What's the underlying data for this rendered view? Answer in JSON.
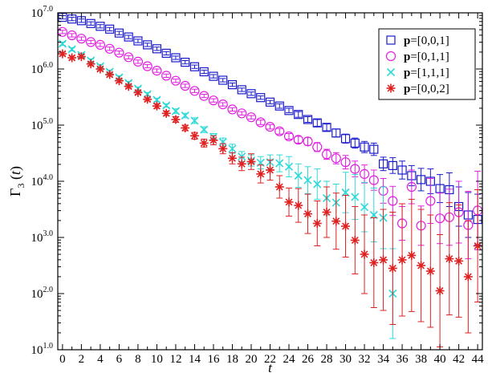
{
  "chart_data": {
    "type": "scatter",
    "title": "",
    "xlabel": "t",
    "ylabel": "Γ",
    "ylabel_sub": "3",
    "ylabel_suffix": " (t)",
    "xlim": [
      -0.5,
      44.5
    ],
    "ylim_log10": [
      1.0,
      7.0
    ],
    "log_scale_y": true,
    "grid": false,
    "legend_position": "top-right",
    "x_ticks": [
      0,
      2,
      4,
      6,
      8,
      10,
      12,
      14,
      16,
      18,
      20,
      22,
      24,
      26,
      28,
      30,
      32,
      34,
      36,
      38,
      40,
      42,
      44
    ],
    "y_ticks": [
      {
        "exp": 1.0,
        "base": "10",
        "power": "1.0"
      },
      {
        "exp": 2.0,
        "base": "10",
        "power": "2.0"
      },
      {
        "exp": 3.0,
        "base": "10",
        "power": "3.0"
      },
      {
        "exp": 4.0,
        "base": "10",
        "power": "4.0"
      },
      {
        "exp": 5.0,
        "base": "10",
        "power": "5.0"
      },
      {
        "exp": 6.0,
        "base": "10",
        "power": "6.0"
      },
      {
        "exp": 7.0,
        "base": "10",
        "power": "7.0"
      }
    ],
    "series": [
      {
        "name_bold": "p",
        "name_rest": "=[0,0,1]",
        "marker": "square",
        "color": "#1a1acc",
        "x": [
          0,
          1,
          2,
          3,
          4,
          5,
          6,
          7,
          8,
          9,
          10,
          11,
          12,
          13,
          14,
          15,
          16,
          17,
          18,
          19,
          20,
          21,
          22,
          23,
          24,
          25,
          26,
          27,
          28,
          29,
          30,
          31,
          32,
          33,
          34,
          35,
          36,
          37,
          38,
          39,
          40,
          41,
          42,
          43,
          44
        ],
        "log10_y": [
          6.92,
          6.89,
          6.86,
          6.81,
          6.76,
          6.71,
          6.64,
          6.57,
          6.5,
          6.43,
          6.36,
          6.28,
          6.2,
          6.12,
          6.04,
          5.95,
          5.87,
          5.8,
          5.72,
          5.63,
          5.56,
          5.49,
          5.41,
          5.34,
          5.26,
          5.19,
          5.1,
          5.04,
          4.96,
          4.86,
          4.76,
          4.68,
          4.61,
          4.57,
          4.31,
          4.28,
          4.2,
          4.1,
          4.03,
          4.0,
          3.87,
          3.85,
          3.55,
          3.4,
          3.32
        ],
        "log10_err": [
          0.03,
          0.03,
          0.03,
          0.03,
          0.03,
          0.03,
          0.03,
          0.03,
          0.03,
          0.03,
          0.03,
          0.03,
          0.03,
          0.03,
          0.03,
          0.03,
          0.03,
          0.03,
          0.03,
          0.03,
          0.03,
          0.03,
          0.03,
          0.04,
          0.04,
          0.05,
          0.05,
          0.06,
          0.06,
          0.07,
          0.08,
          0.09,
          0.1,
          0.11,
          0.12,
          0.14,
          0.16,
          0.18,
          0.2,
          0.22,
          0.25,
          0.3,
          0.35,
          0.4,
          0.45
        ]
      },
      {
        "name_bold": "p",
        "name_rest": "=[0,1,1]",
        "marker": "circle",
        "color": "#e020e0",
        "x": [
          0,
          1,
          2,
          3,
          4,
          5,
          6,
          7,
          8,
          9,
          10,
          11,
          12,
          13,
          14,
          15,
          16,
          17,
          18,
          19,
          20,
          21,
          22,
          23,
          24,
          25,
          26,
          27,
          28,
          29,
          30,
          31,
          32,
          33,
          34,
          35,
          36,
          37,
          38,
          39,
          40,
          41,
          42,
          43,
          44
        ],
        "log10_y": [
          6.66,
          6.6,
          6.54,
          6.48,
          6.43,
          6.36,
          6.29,
          6.21,
          6.13,
          6.05,
          5.97,
          5.88,
          5.79,
          5.7,
          5.61,
          5.52,
          5.44,
          5.37,
          5.28,
          5.21,
          5.14,
          5.05,
          4.97,
          4.89,
          4.8,
          4.74,
          4.71,
          4.61,
          4.48,
          4.41,
          4.34,
          4.22,
          4.13,
          4.02,
          3.83,
          3.65,
          3.25,
          3.9,
          3.21,
          3.65,
          3.34,
          3.36,
          3.45,
          3.22,
          3.48
        ],
        "log10_err": [
          0.03,
          0.03,
          0.03,
          0.03,
          0.03,
          0.03,
          0.03,
          0.03,
          0.03,
          0.03,
          0.03,
          0.03,
          0.03,
          0.03,
          0.03,
          0.03,
          0.03,
          0.03,
          0.03,
          0.03,
          0.03,
          0.04,
          0.04,
          0.05,
          0.05,
          0.06,
          0.07,
          0.08,
          0.09,
          0.1,
          0.12,
          0.14,
          0.16,
          0.18,
          0.22,
          0.26,
          0.3,
          0.3,
          0.35,
          0.4,
          0.45,
          0.5,
          0.55,
          0.6,
          0.7
        ]
      },
      {
        "name_bold": "p",
        "name_rest": "=[1,1,1]",
        "marker": "x",
        "color": "#30d8d8",
        "x": [
          0,
          1,
          2,
          3,
          4,
          5,
          6,
          7,
          8,
          9,
          10,
          11,
          12,
          13,
          14,
          15,
          16,
          17,
          18,
          19,
          20,
          21,
          22,
          23,
          24,
          25,
          26,
          27,
          28,
          29,
          30,
          31,
          32,
          33,
          34,
          35
        ],
        "log10_y": [
          6.45,
          6.35,
          6.25,
          6.15,
          6.05,
          5.95,
          5.85,
          5.75,
          5.65,
          5.55,
          5.45,
          5.35,
          5.25,
          5.17,
          5.08,
          4.92,
          4.79,
          4.7,
          4.58,
          4.44,
          4.37,
          4.33,
          4.34,
          4.32,
          4.26,
          4.1,
          4.02,
          3.95,
          3.7,
          3.62,
          3.8,
          3.72,
          3.54,
          3.4,
          3.35,
          2.0
        ],
        "log10_err": [
          0.03,
          0.03,
          0.03,
          0.03,
          0.03,
          0.03,
          0.03,
          0.03,
          0.03,
          0.03,
          0.03,
          0.03,
          0.04,
          0.04,
          0.05,
          0.05,
          0.06,
          0.07,
          0.08,
          0.09,
          0.1,
          0.11,
          0.13,
          0.15,
          0.18,
          0.21,
          0.24,
          0.27,
          0.3,
          0.33,
          0.36,
          0.4,
          0.44,
          0.48,
          0.55,
          0.8
        ]
      },
      {
        "name_bold": "p",
        "name_rest": "=[0,0,2]",
        "marker": "star",
        "color": "#e02020",
        "x": [
          0,
          1,
          2,
          3,
          4,
          5,
          6,
          7,
          8,
          9,
          10,
          11,
          12,
          13,
          14,
          15,
          16,
          17,
          18,
          19,
          20,
          21,
          22,
          23,
          24,
          25,
          26,
          27,
          28,
          29,
          30,
          31,
          32,
          33,
          34,
          35,
          36,
          37,
          38,
          39,
          40,
          41,
          42,
          43,
          44
        ],
        "log10_y": [
          6.27,
          6.2,
          6.22,
          6.09,
          6.0,
          5.9,
          5.79,
          5.69,
          5.58,
          5.46,
          5.34,
          5.21,
          5.1,
          4.95,
          4.81,
          4.68,
          4.73,
          4.58,
          4.41,
          4.31,
          4.35,
          4.13,
          4.2,
          3.9,
          3.63,
          3.57,
          3.42,
          3.25,
          3.45,
          3.29,
          3.2,
          2.95,
          2.7,
          2.55,
          2.6,
          2.45,
          2.6,
          2.68,
          2.5,
          2.4,
          2.05,
          2.62,
          2.58,
          2.3,
          2.85
        ],
        "log10_err": [
          0.03,
          0.03,
          0.03,
          0.03,
          0.03,
          0.03,
          0.03,
          0.03,
          0.03,
          0.03,
          0.04,
          0.04,
          0.05,
          0.05,
          0.06,
          0.07,
          0.08,
          0.09,
          0.1,
          0.12,
          0.14,
          0.16,
          0.18,
          0.2,
          0.25,
          0.3,
          0.35,
          0.4,
          0.45,
          0.5,
          0.55,
          0.6,
          0.7,
          0.8,
          0.9,
          1.0,
          1.0,
          1.0,
          1.0,
          1.0,
          1.0,
          1.0,
          1.0,
          1.0,
          1.0
        ]
      }
    ]
  }
}
